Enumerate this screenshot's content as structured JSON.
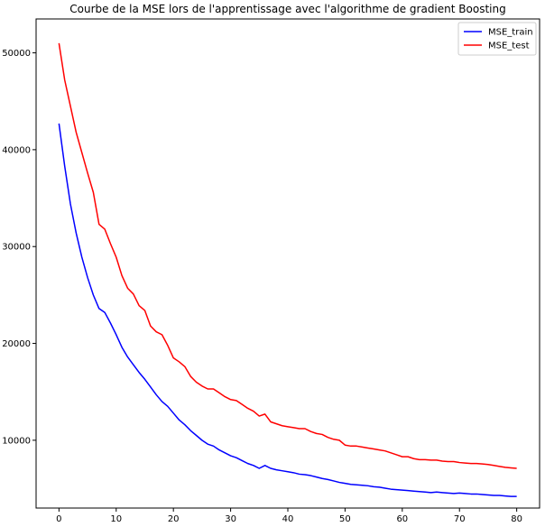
{
  "chart_data": {
    "type": "line",
    "title": "Courbe de la MSE lors de l'apprentissage avec l'algorithme de gradient Boosting",
    "xlabel": "",
    "ylabel": "",
    "xlim": [
      -4,
      84
    ],
    "ylim": [
      3000,
      53500
    ],
    "xticks": [
      0,
      10,
      20,
      30,
      40,
      50,
      60,
      70,
      80
    ],
    "xtick_labels": [
      "0",
      "10",
      "20",
      "30",
      "40",
      "50",
      "60",
      "70",
      "80"
    ],
    "yticks": [
      10000,
      20000,
      30000,
      40000,
      50000
    ],
    "ytick_labels": [
      "10000",
      "20000",
      "30000",
      "40000",
      "50000"
    ],
    "grid": false,
    "legend_position": "top-right",
    "colors": {
      "train": "#0000ff",
      "test": "#ff0000"
    },
    "series": [
      {
        "name": "MSE_train",
        "color": "#0000ff",
        "x": [
          0,
          1,
          2,
          3,
          4,
          5,
          6,
          7,
          8,
          9,
          10,
          11,
          12,
          13,
          14,
          15,
          16,
          17,
          18,
          19,
          20,
          21,
          22,
          23,
          24,
          25,
          26,
          27,
          28,
          29,
          30,
          31,
          32,
          33,
          34,
          35,
          36,
          37,
          38,
          39,
          40,
          41,
          42,
          43,
          44,
          45,
          46,
          47,
          48,
          49,
          50,
          51,
          52,
          53,
          54,
          55,
          56,
          57,
          58,
          59,
          60,
          61,
          62,
          63,
          64,
          65,
          66,
          67,
          68,
          69,
          70,
          71,
          72,
          73,
          74,
          75,
          76,
          77,
          78,
          79,
          80
        ],
        "values": [
          42700,
          38300,
          34400,
          31400,
          28900,
          26800,
          25000,
          23600,
          23200,
          22100,
          20900,
          19600,
          18600,
          17800,
          17000,
          16300,
          15500,
          14700,
          14000,
          13500,
          12800,
          12100,
          11600,
          11000,
          10500,
          10000,
          9600,
          9400,
          9000,
          8700,
          8400,
          8200,
          7900,
          7600,
          7400,
          7100,
          7400,
          7100,
          6950,
          6850,
          6750,
          6650,
          6500,
          6450,
          6350,
          6200,
          6050,
          5950,
          5800,
          5650,
          5550,
          5450,
          5400,
          5350,
          5300,
          5200,
          5150,
          5050,
          4950,
          4900,
          4850,
          4800,
          4750,
          4700,
          4650,
          4600,
          4650,
          4600,
          4550,
          4500,
          4550,
          4500,
          4450,
          4450,
          4400,
          4350,
          4300,
          4300,
          4250,
          4200,
          4200
        ]
      },
      {
        "name": "MSE_test",
        "color": "#ff0000",
        "x": [
          0,
          1,
          2,
          3,
          4,
          5,
          6,
          7,
          8,
          9,
          10,
          11,
          12,
          13,
          14,
          15,
          16,
          17,
          18,
          19,
          20,
          21,
          22,
          23,
          24,
          25,
          26,
          27,
          28,
          29,
          30,
          31,
          32,
          33,
          34,
          35,
          36,
          37,
          38,
          39,
          40,
          41,
          42,
          43,
          44,
          45,
          46,
          47,
          48,
          49,
          50,
          51,
          52,
          53,
          54,
          55,
          56,
          57,
          58,
          59,
          60,
          61,
          62,
          63,
          64,
          65,
          66,
          67,
          68,
          69,
          70,
          71,
          72,
          73,
          74,
          75,
          76,
          77,
          78,
          79,
          80
        ],
        "values": [
          51000,
          47200,
          44500,
          41800,
          39700,
          37600,
          35600,
          32300,
          31800,
          30300,
          28900,
          27000,
          25700,
          25100,
          23900,
          23400,
          21800,
          21200,
          20900,
          19800,
          18500,
          18100,
          17600,
          16600,
          16000,
          15600,
          15300,
          15300,
          14900,
          14500,
          14200,
          14100,
          13700,
          13300,
          13000,
          12500,
          12700,
          11900,
          11700,
          11500,
          11400,
          11300,
          11200,
          11200,
          10900,
          10700,
          10600,
          10300,
          10100,
          10000,
          9500,
          9400,
          9400,
          9300,
          9200,
          9100,
          9000,
          8900,
          8700,
          8500,
          8300,
          8300,
          8100,
          8000,
          8000,
          7950,
          7950,
          7850,
          7800,
          7800,
          7700,
          7650,
          7600,
          7600,
          7550,
          7500,
          7400,
          7300,
          7200,
          7150,
          7100
        ]
      }
    ]
  }
}
